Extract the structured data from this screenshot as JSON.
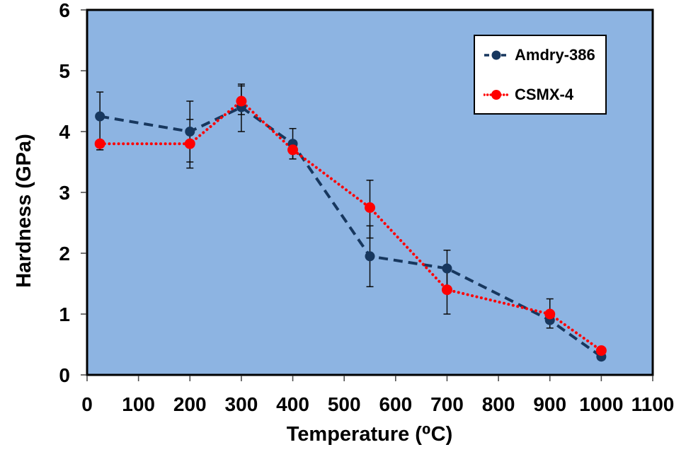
{
  "chart_data": {
    "type": "line",
    "title": "",
    "xlabel": "Temperature (⁰C)",
    "ylabel": "Hardness (GPa)",
    "xlim": [
      0,
      1100
    ],
    "ylim": [
      0,
      6
    ],
    "x_ticks": [
      0,
      100,
      200,
      300,
      400,
      500,
      600,
      700,
      800,
      900,
      1000,
      1100
    ],
    "y_ticks": [
      0,
      1,
      2,
      3,
      4,
      5,
      6
    ],
    "grid": false,
    "legend_position": "top-right",
    "colors": {
      "plot_background": "#8DB4E2",
      "page_background": "#FFFFFF",
      "axis_border": "#000000",
      "tick": "#4D4D4D",
      "error_bar": "#0A0A0A"
    },
    "series": [
      {
        "name": "Amdry-386",
        "color": "#17375E",
        "line_style": "dashed",
        "marker": "circle",
        "x": [
          25,
          200,
          300,
          400,
          550,
          700,
          900,
          1000
        ],
        "y": [
          4.25,
          4.0,
          4.4,
          3.8,
          1.95,
          1.75,
          0.9,
          0.3
        ],
        "err_up": [
          0.4,
          0.5,
          0.38,
          0.25,
          0.5,
          0.3,
          0.13,
          0.05
        ],
        "err_down": [
          0.55,
          0.5,
          0.4,
          0.25,
          0.5,
          0.3,
          0.13,
          0.05
        ]
      },
      {
        "name": "CSMX-4",
        "color": "#FF0000",
        "line_style": "dotted",
        "marker": "circle",
        "x": [
          25,
          200,
          300,
          400,
          550,
          700,
          900,
          1000
        ],
        "y": [
          3.8,
          3.8,
          4.5,
          3.7,
          2.75,
          1.4,
          1.0,
          0.4
        ],
        "err_up": [
          0.0,
          0.4,
          0.25,
          0.15,
          0.45,
          0.4,
          0.25,
          0.05
        ],
        "err_down": [
          0.1,
          0.4,
          0.22,
          0.15,
          0.5,
          0.4,
          0.15,
          0.05
        ]
      }
    ]
  }
}
